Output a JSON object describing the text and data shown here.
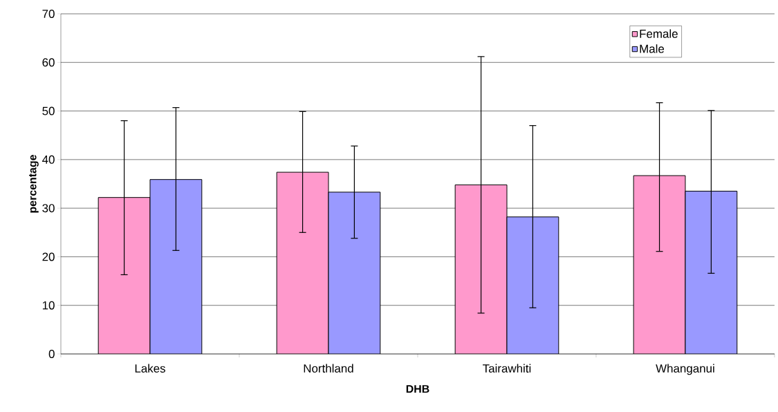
{
  "chart_data": {
    "type": "bar",
    "xlabel": "DHB",
    "ylabel": "percentage",
    "categories": [
      "Lakes",
      "Northland",
      "Tairawhiti",
      "Whanganui"
    ],
    "series": [
      {
        "name": "Female",
        "color": "#ff99cc",
        "values": [
          32.2,
          37.4,
          34.8,
          36.7
        ],
        "errors": [
          [
            16.3,
            48.0
          ],
          [
            25.0,
            49.9
          ],
          [
            8.4,
            61.2
          ],
          [
            21.1,
            51.7
          ]
        ]
      },
      {
        "name": "Male",
        "color": "#9999ff",
        "values": [
          35.9,
          33.3,
          28.2,
          33.5
        ],
        "errors": [
          [
            21.3,
            50.7
          ],
          [
            23.8,
            42.8
          ],
          [
            9.5,
            47.0
          ],
          [
            16.6,
            50.1
          ]
        ]
      }
    ],
    "ylim": [
      0,
      70
    ],
    "yticks": [
      0,
      10,
      20,
      30,
      40,
      50,
      60,
      70
    ],
    "grid": "y",
    "legend": "top right"
  }
}
